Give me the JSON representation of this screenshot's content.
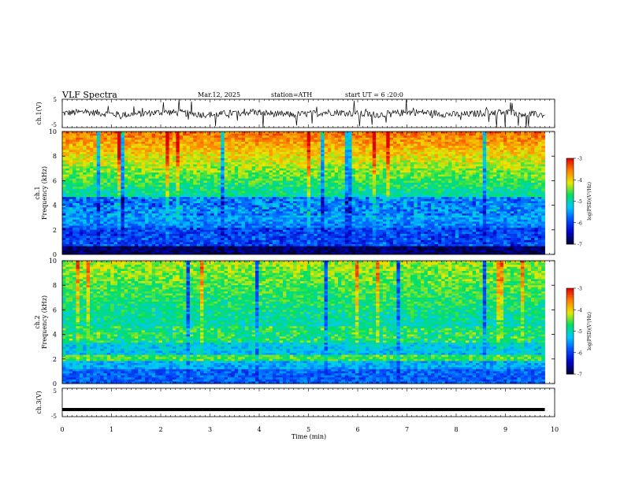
{
  "header": {
    "title": "VLF  Spectra",
    "date": "Mar.12, 2025",
    "station": "station=ATH",
    "start_ut": "start  UT  =   6  :20:0"
  },
  "chart_data": [
    {
      "type": "line",
      "name": "ch1-waveform",
      "ylabel": "ch.1(V)",
      "ylim": [
        -5,
        5
      ],
      "yticks": [
        5,
        -5
      ],
      "xlim": [
        0,
        10
      ],
      "data_end_x": 9.8,
      "baseline_y": 0,
      "noise_amplitude": 1.2,
      "spike_amplitude": 5
    },
    {
      "type": "heatmap",
      "name": "ch1-spectrogram",
      "ylabel": "ch.1\nFrequency  (kHz)",
      "ylim": [
        0,
        10
      ],
      "yticks": [
        0,
        2,
        4,
        6,
        8,
        10
      ],
      "xlim": [
        0,
        10
      ],
      "data_end_x": 9.8,
      "colorbar": {
        "label": "log(PSD)(V²/Hz)",
        "range": [
          -7,
          -3
        ],
        "ticks": [
          "-3",
          "-4",
          "-5",
          "-6",
          "-7"
        ]
      }
    },
    {
      "type": "heatmap",
      "name": "ch2-spectrogram",
      "ylabel": "ch.2\nFrequency  (kHz)",
      "ylim": [
        0,
        10
      ],
      "yticks": [
        0,
        2,
        4,
        6,
        8,
        10
      ],
      "xlim": [
        0,
        10
      ],
      "data_end_x": 9.8,
      "colorbar": {
        "label": "log(PSD)(V²/Hz)",
        "range": [
          -7,
          -3
        ],
        "ticks": [
          "-3",
          "-4",
          "-5",
          "-6",
          "-7"
        ]
      }
    },
    {
      "type": "line",
      "name": "ch3-waveform",
      "ylabel": "ch.3(V)",
      "ylim": [
        -5,
        5
      ],
      "yticks": [
        5,
        -5
      ],
      "xlim": [
        0,
        10
      ],
      "data_end_x": 9.8,
      "baseline_y": -2.5
    }
  ],
  "x_axis": {
    "label": "Time  (min)",
    "ticks": [
      "0",
      "1",
      "2",
      "3",
      "4",
      "5",
      "6",
      "7",
      "8",
      "9",
      "10"
    ]
  },
  "colors": {
    "line": "#000000",
    "colormap": [
      "#000030",
      "#0000c8",
      "#0050ff",
      "#00c8ff",
      "#00e060",
      "#e8e800",
      "#ff8000",
      "#e00000",
      "#ffffff"
    ]
  }
}
